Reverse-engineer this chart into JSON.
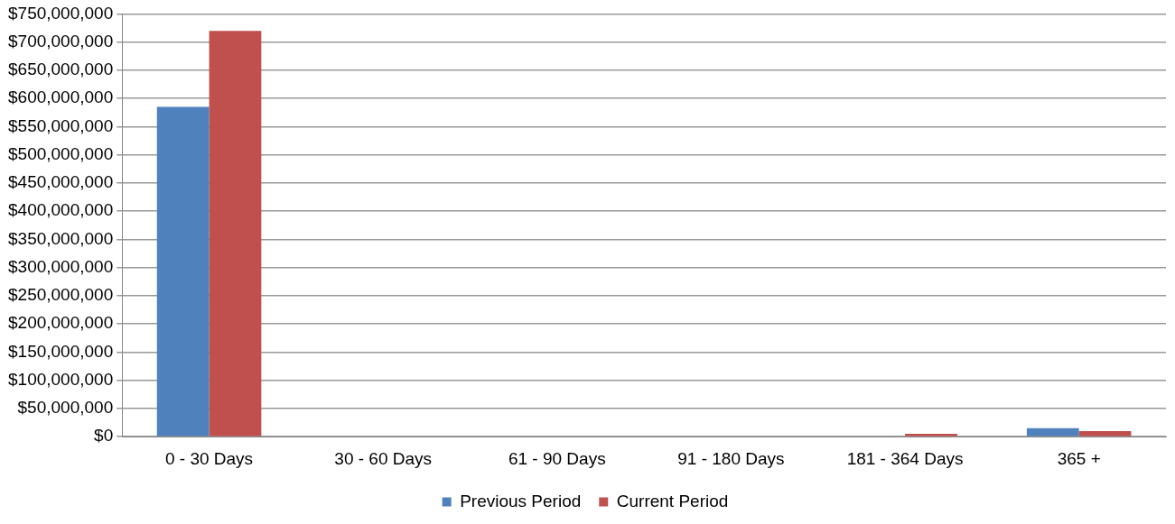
{
  "chart_data": {
    "type": "bar",
    "categories": [
      "0 - 30 Days",
      "30 - 60 Days",
      "61 - 90 Days",
      "91 - 180 Days",
      "181 - 364 Days",
      "365 +"
    ],
    "series": [
      {
        "name": "Previous Period",
        "color": "#4f81bd",
        "values": [
          585000000,
          1000000,
          1000000,
          1000000,
          1000000,
          15000000
        ]
      },
      {
        "name": "Current Period",
        "color": "#c0504d",
        "values": [
          720000000,
          1000000,
          1000000,
          1000000,
          5000000,
          10000000
        ]
      }
    ],
    "ylim": [
      0,
      750000000
    ],
    "yticks": [
      {
        "value": 0,
        "label": "$0"
      },
      {
        "value": 50000000,
        "label": "$50,000,000"
      },
      {
        "value": 100000000,
        "label": "$100,000,000"
      },
      {
        "value": 150000000,
        "label": "$150,000,000"
      },
      {
        "value": 200000000,
        "label": "$200,000,000"
      },
      {
        "value": 250000000,
        "label": "$250,000,000"
      },
      {
        "value": 300000000,
        "label": "$300,000,000"
      },
      {
        "value": 350000000,
        "label": "$350,000,000"
      },
      {
        "value": 400000000,
        "label": "$400,000,000"
      },
      {
        "value": 450000000,
        "label": "$450,000,000"
      },
      {
        "value": 500000000,
        "label": "$500,000,000"
      },
      {
        "value": 550000000,
        "label": "$550,000,000"
      },
      {
        "value": 600000000,
        "label": "$600,000,000"
      },
      {
        "value": 650000000,
        "label": "$650,000,000"
      },
      {
        "value": 700000000,
        "label": "$700,000,000"
      },
      {
        "value": 750000000,
        "label": "$750,000,000"
      }
    ],
    "grid": "y",
    "legend": "bottom"
  }
}
